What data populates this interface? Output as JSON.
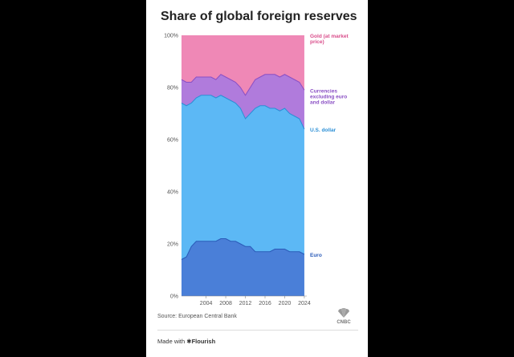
{
  "chart_data": {
    "type": "area",
    "title": "Share of global foreign reserves",
    "source": "Source: European Central Bank",
    "made_with_prefix": "Made with",
    "made_with_brand": "Flourish",
    "logo_text": "CNBC",
    "stacked": true,
    "ylim": [
      0,
      100
    ],
    "yticks": [
      "0%",
      "20%",
      "40%",
      "60%",
      "80%",
      "100%"
    ],
    "xlim": [
      1999,
      2024.5
    ],
    "xticks": [
      "2004",
      "2008",
      "2012",
      "2016",
      "2020",
      "2024"
    ],
    "x": [
      1999,
      2000,
      2001,
      2002,
      2003,
      2004,
      2005,
      2006,
      2007,
      2008,
      2009,
      2010,
      2011,
      2012,
      2013,
      2014,
      2015,
      2016,
      2017,
      2018,
      2019,
      2020,
      2021,
      2022,
      2023,
      2024
    ],
    "series": [
      {
        "name": "Euro",
        "color": "#4a7fd8",
        "label_color": "#2a5bb8",
        "values": [
          14,
          15,
          19,
          21,
          21,
          21,
          21,
          21,
          22,
          22,
          21,
          21,
          20,
          19,
          19,
          17,
          17,
          17,
          17,
          18,
          18,
          18,
          17,
          17,
          17,
          16
        ]
      },
      {
        "name": "U.S. dollar",
        "color": "#5cb8f5",
        "label_color": "#2b8fd6",
        "values": [
          60,
          58,
          55,
          55,
          56,
          56,
          56,
          55,
          55,
          54,
          54,
          53,
          52,
          49,
          51,
          55,
          56,
          56,
          55,
          54,
          53,
          54,
          53,
          52,
          51,
          48
        ]
      },
      {
        "name": "Currencies excluding euro and dollar",
        "color": "#b07bdc",
        "label_color": "#8a4fc4",
        "values": [
          9,
          9,
          8,
          8,
          7,
          7,
          7,
          7,
          8,
          8,
          8,
          8,
          8,
          9,
          10,
          11,
          11,
          12,
          13,
          13,
          13,
          13,
          14,
          14,
          14,
          15
        ]
      },
      {
        "name": "Gold (at market price)",
        "color": "#ef88b6",
        "label_color": "#d94c8a",
        "values": [
          17,
          18,
          18,
          16,
          16,
          16,
          16,
          17,
          15,
          16,
          17,
          18,
          20,
          23,
          20,
          17,
          16,
          15,
          15,
          15,
          16,
          15,
          16,
          17,
          18,
          21
        ]
      }
    ]
  }
}
